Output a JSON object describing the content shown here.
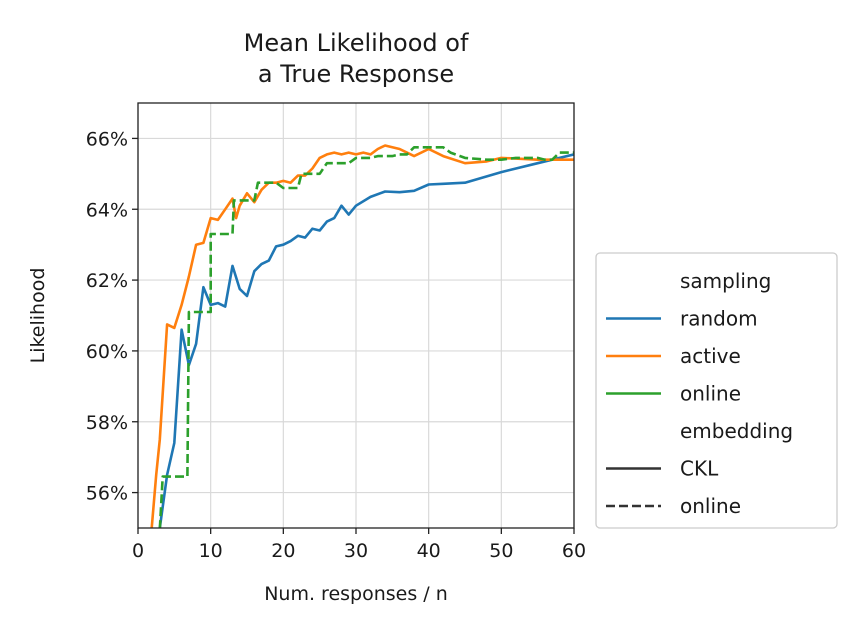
{
  "chart_data": {
    "type": "line",
    "title_lines": [
      "Mean Likelihood of",
      "a True Response"
    ],
    "xlabel": "Num. responses / n",
    "ylabel": "Likelihood",
    "xlim": [
      0,
      60
    ],
    "ylim": [
      55.0,
      67.0
    ],
    "xticks": [
      0,
      10,
      20,
      30,
      40,
      50,
      60
    ],
    "yticks": [
      56,
      58,
      60,
      62,
      64,
      66
    ],
    "ytick_format": "percent",
    "grid": true,
    "legend": {
      "placement": "outside-right",
      "sections": [
        {
          "title": "sampling",
          "entries": [
            {
              "label": "random",
              "color": "#1f77b4",
              "style": "solid"
            },
            {
              "label": "active",
              "color": "#ff7f0e",
              "style": "solid"
            },
            {
              "label": "online",
              "color": "#2ca02c",
              "style": "solid"
            }
          ]
        },
        {
          "title": "embedding",
          "entries": [
            {
              "label": "CKL",
              "color": "#333333",
              "style": "solid"
            },
            {
              "label": "online",
              "color": "#333333",
              "style": "dashed"
            }
          ]
        }
      ]
    },
    "series": [
      {
        "sampling": "random",
        "embedding": "CKL",
        "color": "#1f77b4",
        "style": "solid",
        "x": [
          2.4,
          3,
          4,
          5,
          6,
          7,
          8,
          9,
          10,
          11,
          12,
          13,
          14,
          15,
          16,
          17,
          18,
          19,
          20,
          21,
          22,
          23,
          24,
          25,
          26,
          27,
          28,
          29,
          30,
          32,
          34,
          36,
          38,
          40,
          42,
          45,
          50,
          55,
          60
        ],
        "y": [
          54.6,
          55.0,
          56.5,
          57.4,
          60.6,
          59.6,
          60.2,
          61.8,
          61.3,
          61.35,
          61.25,
          62.4,
          61.75,
          61.55,
          62.25,
          62.45,
          62.55,
          62.95,
          63.0,
          63.1,
          63.25,
          63.2,
          63.45,
          63.4,
          63.65,
          63.75,
          64.1,
          63.85,
          64.1,
          64.35,
          64.5,
          64.48,
          64.52,
          64.7,
          64.72,
          64.75,
          65.05,
          65.3,
          65.55
        ]
      },
      {
        "sampling": "active",
        "embedding": "CKL",
        "color": "#ff7f0e",
        "style": "solid",
        "x": [
          1.8,
          2.5,
          3,
          4,
          5,
          6,
          7,
          8,
          9,
          10,
          11,
          12,
          13,
          13.5,
          14,
          15,
          16,
          17,
          18,
          19,
          20,
          21,
          22,
          23,
          24,
          25,
          26,
          27,
          28,
          29,
          30,
          31,
          32,
          33,
          34,
          35,
          36,
          37,
          38,
          40,
          42,
          45,
          48,
          50,
          55,
          60
        ],
        "y": [
          54.8,
          56.5,
          57.5,
          60.75,
          60.65,
          61.3,
          62.1,
          63.0,
          63.05,
          63.75,
          63.7,
          64.0,
          64.3,
          63.75,
          64.1,
          64.45,
          64.2,
          64.55,
          64.75,
          64.75,
          64.8,
          64.75,
          64.95,
          64.95,
          65.15,
          65.45,
          65.55,
          65.6,
          65.55,
          65.6,
          65.55,
          65.6,
          65.55,
          65.7,
          65.8,
          65.75,
          65.7,
          65.6,
          65.5,
          65.7,
          65.5,
          65.3,
          65.35,
          65.45,
          65.4,
          65.4
        ]
      },
      {
        "sampling": "online",
        "embedding": "online",
        "color": "#2ca02c",
        "style": "dashed",
        "x": [
          2.9,
          3.4,
          4,
          6.8,
          7,
          8,
          9,
          10,
          10,
          12,
          13,
          13.2,
          14,
          15,
          16,
          16.5,
          17,
          18,
          19,
          20,
          22,
          22.5,
          23,
          25,
          26,
          27,
          28,
          29,
          30,
          32,
          33,
          35,
          36,
          37,
          38,
          40,
          42,
          43,
          45,
          48,
          50,
          52,
          55,
          56,
          57,
          58,
          60
        ],
        "y": [
          54.6,
          56.45,
          56.45,
          56.45,
          61.1,
          61.1,
          61.1,
          61.1,
          63.3,
          63.3,
          63.3,
          64.25,
          64.25,
          64.25,
          64.25,
          64.75,
          64.75,
          64.75,
          64.75,
          64.6,
          64.6,
          65.0,
          65.0,
          65.0,
          65.3,
          65.3,
          65.3,
          65.3,
          65.45,
          65.45,
          65.5,
          65.5,
          65.55,
          65.55,
          65.75,
          65.75,
          65.75,
          65.6,
          65.45,
          65.4,
          65.4,
          65.45,
          65.45,
          65.4,
          65.4,
          65.6,
          65.6
        ]
      }
    ]
  }
}
